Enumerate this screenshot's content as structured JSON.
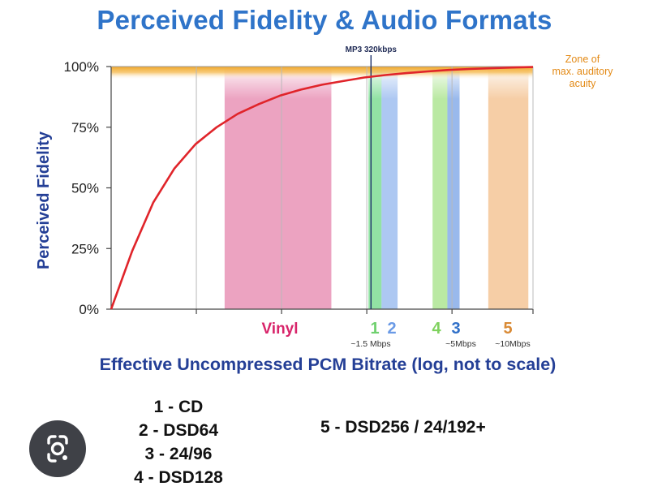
{
  "title": "Perceived Fidelity & Audio Formats",
  "chart_data": {
    "type": "area",
    "title": "Perceived Fidelity & Audio Formats",
    "xlabel": "Effective Uncompressed PCM Bitrate (log, not to scale)",
    "ylabel": "Perceived Fidelity",
    "yticks": [
      "0%",
      "25%",
      "50%",
      "75%",
      "100%"
    ],
    "ylim": [
      0,
      100
    ],
    "grid": "vertical lines",
    "curve": {
      "color": "#e0242a",
      "points": [
        [
          0,
          0
        ],
        [
          0.05,
          24
        ],
        [
          0.1,
          44
        ],
        [
          0.15,
          58
        ],
        [
          0.2,
          68
        ],
        [
          0.25,
          75
        ],
        [
          0.3,
          80.5
        ],
        [
          0.35,
          84.5
        ],
        [
          0.4,
          88
        ],
        [
          0.45,
          90.5
        ],
        [
          0.5,
          92.5
        ],
        [
          0.55,
          94
        ],
        [
          0.6,
          95.5
        ],
        [
          0.65,
          96.5
        ],
        [
          0.7,
          97.3
        ],
        [
          0.75,
          98
        ],
        [
          0.8,
          98.6
        ],
        [
          0.85,
          99
        ],
        [
          0.9,
          99.3
        ],
        [
          0.95,
          99.6
        ],
        [
          1,
          99.8
        ]
      ]
    },
    "top_zone": {
      "label": [
        "Zone of",
        "max. auditory",
        "acuity"
      ],
      "color": "#f0a628"
    },
    "marker": {
      "label": "MP3 320kbps"
    },
    "bands": [
      {
        "id": "vinyl",
        "label": "Vinyl",
        "color": "#e06a9b",
        "label_color": "#d8246a",
        "x0": 0.269,
        "x1": 0.522
      },
      {
        "id": "1",
        "label": "1",
        "sub": "~1.5 Mbps",
        "color": "#4fd06c",
        "label_color": "#6fd06e",
        "x0": 0.61,
        "x1": 0.641
      },
      {
        "id": "2",
        "label": "2",
        "color": "#7aa6ea",
        "label_color": "#6a9ae6",
        "x0": 0.641,
        "x1": 0.679
      },
      {
        "id": "4",
        "label": "4",
        "color": "#8fdc6a",
        "label_color": "#7fd25e",
        "x0": 0.762,
        "x1": 0.797
      },
      {
        "id": "3",
        "label": "3",
        "sub": "~5Mbps",
        "color": "#5a8ee0",
        "label_color": "#2f6fc8",
        "x0": 0.797,
        "x1": 0.826
      },
      {
        "id": "5",
        "label": "5",
        "sub": "~10Mbps",
        "color": "#f0b070",
        "label_color": "#d98a35",
        "x0": 0.894,
        "x1": 0.989
      }
    ]
  },
  "legend": {
    "items": [
      "1 - CD",
      "2 - DSD64",
      "3 - 24/96",
      "4 - DSD128"
    ],
    "item5": "5 - DSD256 / 24/192+"
  },
  "overlay": {
    "icon": "google-lens-icon"
  }
}
